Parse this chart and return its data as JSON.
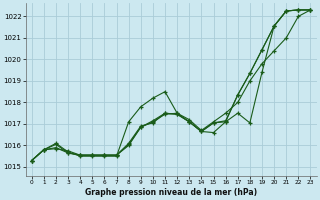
{
  "title": "Graphe pression niveau de la mer (hPa)",
  "bg_color": "#cce8f0",
  "grid_color": "#aaccd8",
  "line_color": "#1a5c1a",
  "xlim": [
    -0.5,
    23.5
  ],
  "ylim": [
    1014.6,
    1022.6
  ],
  "yticks": [
    1015,
    1016,
    1017,
    1018,
    1019,
    1020,
    1021,
    1022
  ],
  "xticks": [
    0,
    1,
    2,
    3,
    4,
    5,
    6,
    7,
    8,
    9,
    10,
    11,
    12,
    13,
    14,
    15,
    16,
    17,
    18,
    19,
    20,
    21,
    22,
    23
  ],
  "series": [
    [
      1015.3,
      1015.8,
      1015.85,
      1015.75,
      1015.55,
      1015.55,
      1015.55,
      1015.55,
      1016.0,
      1016.85,
      1017.1,
      1017.45,
      1017.5,
      1017.1,
      1016.65,
      1017.05,
      1017.1,
      1018.35,
      1019.35,
      1020.45,
      1021.55,
      1022.25,
      1022.3,
      1022.3
    ],
    [
      1015.3,
      1015.8,
      1015.9,
      1015.65,
      1015.55,
      1015.55,
      1015.55,
      1015.55,
      1016.05,
      1016.85,
      1017.15,
      1017.5,
      1017.45,
      1017.1,
      1016.65,
      1017.05,
      1017.15,
      1018.35,
      1019.35,
      1020.45,
      1021.55,
      1022.25,
      1022.3,
      1022.3
    ],
    [
      1015.3,
      1015.8,
      1016.05,
      1015.65,
      1015.55,
      1015.55,
      1015.55,
      1015.55,
      1016.1,
      1016.9,
      1017.05,
      1017.5,
      1017.45,
      1017.1,
      1016.65,
      1016.6,
      1017.1,
      1017.5,
      1017.05,
      1019.4,
      1021.55,
      1022.25,
      1022.3,
      1022.3
    ],
    [
      1015.3,
      1015.8,
      1016.1,
      1015.7,
      1015.5,
      1015.5,
      1015.5,
      1015.5,
      1017.1,
      1017.8,
      1018.2,
      1018.5,
      1017.5,
      1017.2,
      1016.7,
      1017.1,
      1017.5,
      1018.0,
      1019.0,
      1019.8,
      1020.4,
      1021.0,
      1022.0,
      1022.3
    ]
  ]
}
